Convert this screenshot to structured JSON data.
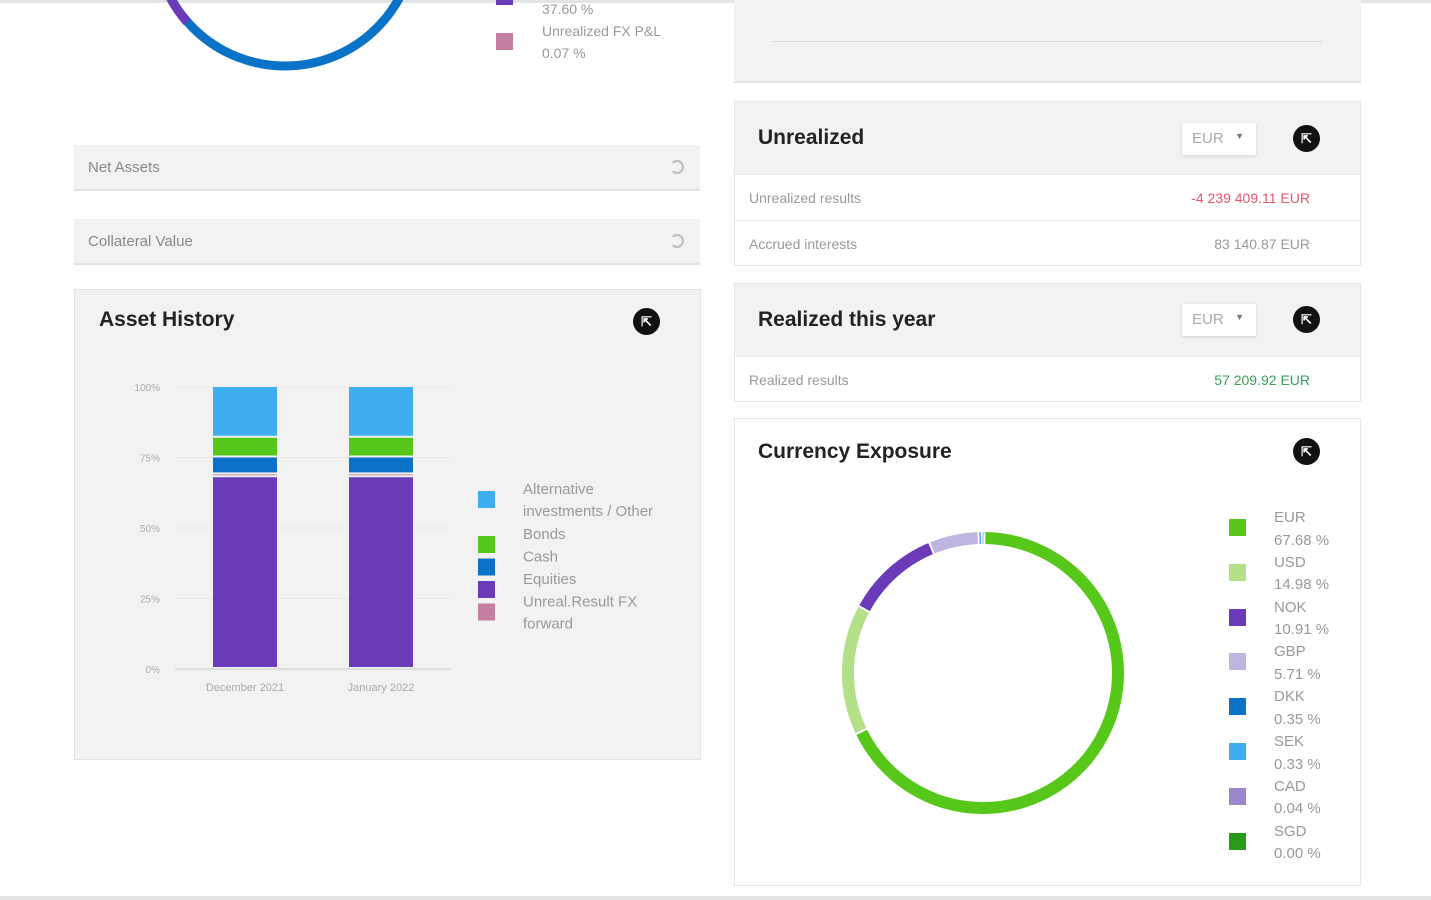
{
  "allocation_partial": {
    "legend": [
      {
        "label": "",
        "value": "37.60 %",
        "color": "#6a3ab8"
      },
      {
        "label": "Unrealized FX P&L",
        "value": "0.07 %",
        "color": "#c47f9e"
      }
    ]
  },
  "net_assets": {
    "label": "Net Assets"
  },
  "collateral": {
    "label": "Collateral Value"
  },
  "unrealized": {
    "title": "Unrealized",
    "currency": "EUR",
    "rows": [
      {
        "label": "Unrealized results",
        "value": "-4 239 409.11 EUR",
        "color": "#e05a6a"
      },
      {
        "label": "Accrued interests",
        "value": "83 140.87 EUR",
        "color": "#999999"
      }
    ]
  },
  "realized": {
    "title": "Realized this year",
    "currency": "EUR",
    "rows": [
      {
        "label": "Realized results",
        "value": "57 209.92 EUR",
        "color": "#3aa05a"
      }
    ]
  },
  "asset_history": {
    "title": "Asset History"
  },
  "currency_exposure": {
    "title": "Currency Exposure"
  },
  "chart_data": [
    {
      "type": "bar",
      "stacked": true,
      "title": "Asset History",
      "categories": [
        "December 2021",
        "January 2022"
      ],
      "yticks": [
        "0%",
        "25%",
        "50%",
        "75%",
        "100%"
      ],
      "ylim": [
        0,
        100
      ],
      "series": [
        {
          "name": "Equities",
          "color": "#6a3ab8",
          "values": [
            68,
            68
          ]
        },
        {
          "name": "Unreal.Result FX forward",
          "color": "#c47f9e",
          "values": [
            1,
            1
          ]
        },
        {
          "name": "Cash",
          "color": "#0a73c8",
          "values": [
            6,
            6
          ]
        },
        {
          "name": "Bonds",
          "color": "#57c81a",
          "values": [
            7,
            7
          ]
        },
        {
          "name": "Alternative investments / Other",
          "color": "#3eaef0",
          "values": [
            18,
            18
          ]
        }
      ],
      "legend_order": [
        4,
        3,
        2,
        0,
        1
      ]
    },
    {
      "type": "pie",
      "donut": true,
      "title": "Currency Exposure",
      "slices": [
        {
          "label": "EUR",
          "value": 67.68,
          "display": "67.68 %",
          "color": "#57c81a"
        },
        {
          "label": "USD",
          "value": 14.98,
          "display": "14.98 %",
          "color": "#b5e08a"
        },
        {
          "label": "NOK",
          "value": 10.91,
          "display": "10.91 %",
          "color": "#6a3ab8"
        },
        {
          "label": "GBP",
          "value": 5.71,
          "display": "5.71 %",
          "color": "#c0b4e0"
        },
        {
          "label": "DKK",
          "value": 0.35,
          "display": "0.35 %",
          "color": "#0a73c8"
        },
        {
          "label": "SEK",
          "value": 0.33,
          "display": "0.33 %",
          "color": "#3eaef0"
        },
        {
          "label": "CAD",
          "value": 0.04,
          "display": "0.04 %",
          "color": "#9c86cc"
        },
        {
          "label": "SGD",
          "value": 0.0,
          "display": "0.00 %",
          "color": "#2a9a1a"
        }
      ]
    }
  ]
}
